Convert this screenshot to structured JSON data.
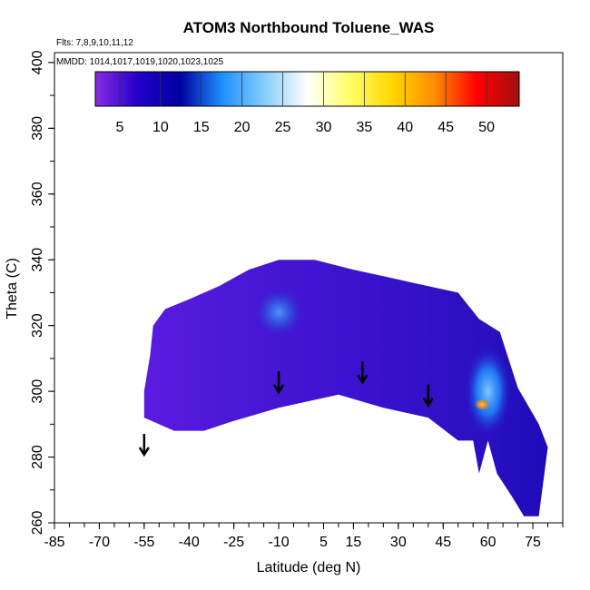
{
  "chart_data": {
    "type": "heatmap",
    "title": "ATOM3 Northbound Toluene_WAS",
    "subtitle_flights": "Flts: 7,8,9,10,11,12",
    "subtitle_dates": "MMDD: 1014,1017,1019,1020,1023,1025",
    "xlabel": "Latitude (deg N)",
    "ylabel": "Theta (C)",
    "xlim": [
      -85,
      85
    ],
    "ylim": [
      260,
      403
    ],
    "xticks": [
      -85,
      -70,
      -55,
      -40,
      -25,
      -10,
      5,
      15,
      30,
      45,
      60,
      75
    ],
    "yticks": [
      260,
      280,
      300,
      320,
      340,
      360,
      380,
      400
    ],
    "colorbar": {
      "ticks": [
        5,
        10,
        15,
        20,
        25,
        30,
        35,
        40,
        45,
        50
      ],
      "range": [
        2,
        54
      ],
      "stops": [
        "#8a2be2",
        "#2200cc",
        "#0000a0",
        "#1e90ff",
        "#87cefa",
        "#ffffff",
        "#ffff66",
        "#ffd700",
        "#ff8c00",
        "#ff0000",
        "#a01010"
      ]
    },
    "field_outline": [
      [
        -55,
        292
      ],
      [
        -45,
        288
      ],
      [
        -35,
        288
      ],
      [
        -25,
        291
      ],
      [
        -10,
        295
      ],
      [
        10,
        299
      ],
      [
        25,
        295
      ],
      [
        40,
        292
      ],
      [
        50,
        285
      ],
      [
        55,
        285
      ],
      [
        57,
        275
      ],
      [
        60,
        285
      ],
      [
        63,
        275
      ],
      [
        68,
        268
      ],
      [
        72,
        262
      ],
      [
        77,
        262
      ],
      [
        80,
        283
      ],
      [
        77,
        290
      ],
      [
        70,
        301
      ],
      [
        64,
        318
      ],
      [
        57,
        322
      ],
      [
        50,
        330
      ],
      [
        35,
        333
      ],
      [
        25,
        335
      ],
      [
        15,
        337
      ],
      [
        2,
        340
      ],
      [
        -10,
        340
      ],
      [
        -20,
        337
      ],
      [
        -30,
        332
      ],
      [
        -40,
        328
      ],
      [
        -48,
        325
      ],
      [
        -52,
        320
      ],
      [
        -53,
        311
      ],
      [
        -55,
        300
      ]
    ],
    "high_regions": [
      {
        "label": "peak-near-10S",
        "lon": -10,
        "theta": 324,
        "value": 15
      },
      {
        "label": "peak-near-60N",
        "lon": 60,
        "theta": 300,
        "value": 22
      },
      {
        "label": "max-near-58N",
        "lon": 58,
        "theta": 296,
        "value": 36
      }
    ],
    "arrows": [
      {
        "x": -55,
        "theta": 281
      },
      {
        "x": -10,
        "theta": 300
      },
      {
        "x": 18,
        "theta": 303
      },
      {
        "x": 40,
        "theta": 296
      }
    ]
  }
}
